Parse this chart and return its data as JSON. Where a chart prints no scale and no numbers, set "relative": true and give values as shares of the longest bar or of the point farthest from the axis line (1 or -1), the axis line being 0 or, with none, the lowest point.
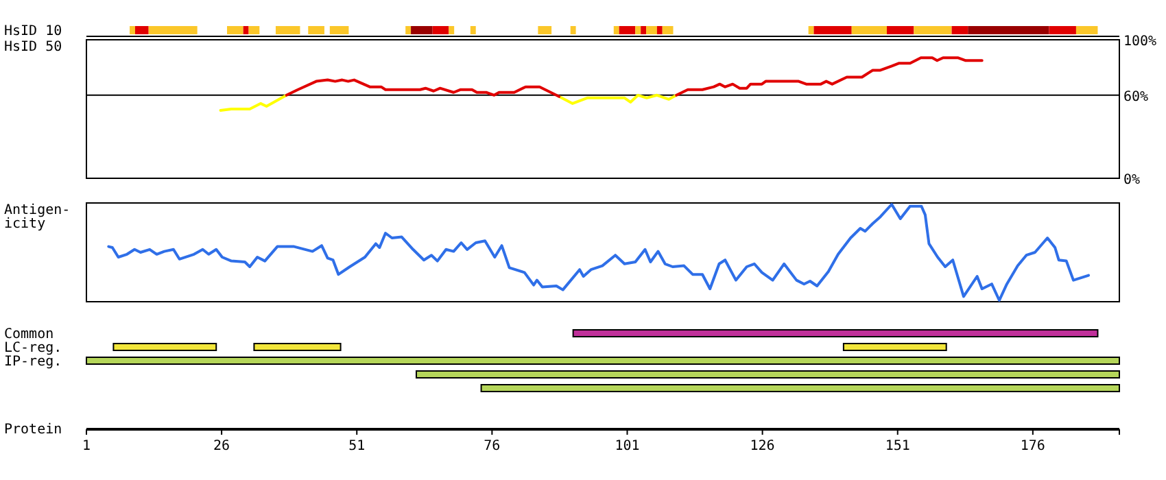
{
  "chart_data": [
    {
      "type": "bar",
      "orientation": "horizontal",
      "categories": [
        "HsID 10"
      ],
      "xlim": [
        1,
        192
      ],
      "tick_labels": "y",
      "series": [
        {
          "color": "#fbc72a",
          "base": [
            9
          ],
          "values": [
            1
          ]
        },
        {
          "color": "#e00000",
          "base": [
            10
          ],
          "values": [
            2.5
          ]
        },
        {
          "color": "#fbc72a",
          "base": [
            12.5
          ],
          "values": [
            9
          ]
        },
        {
          "color": "#fbc72a",
          "base": [
            27
          ],
          "values": [
            3
          ]
        },
        {
          "color": "#e00000",
          "base": [
            30
          ],
          "values": [
            1
          ]
        },
        {
          "color": "#fbc72a",
          "base": [
            31
          ],
          "values": [
            2
          ]
        },
        {
          "color": "#fbc72a",
          "base": [
            36
          ],
          "values": [
            4.5
          ]
        },
        {
          "color": "#fbc72a",
          "base": [
            42
          ],
          "values": [
            3
          ]
        },
        {
          "color": "#fbc72a",
          "base": [
            46
          ],
          "values": [
            3.5
          ]
        },
        {
          "color": "#fbc72a",
          "base": [
            60
          ],
          "values": [
            1
          ]
        },
        {
          "color": "#990000",
          "base": [
            61
          ],
          "values": [
            4
          ]
        },
        {
          "color": "#e00000",
          "base": [
            65
          ],
          "values": [
            3
          ]
        },
        {
          "color": "#fbc72a",
          "base": [
            68
          ],
          "values": [
            1
          ]
        },
        {
          "color": "#fbc72a",
          "base": [
            72
          ],
          "values": [
            1
          ]
        },
        {
          "color": "#fbc72a",
          "base": [
            84.5
          ],
          "values": [
            2.5
          ]
        },
        {
          "color": "#fbc72a",
          "base": [
            90.5
          ],
          "values": [
            1
          ]
        },
        {
          "color": "#fbc72a",
          "base": [
            98.5
          ],
          "values": [
            1
          ]
        },
        {
          "color": "#e00000",
          "base": [
            99.5
          ],
          "values": [
            3
          ]
        },
        {
          "color": "#fbc72a",
          "base": [
            102.5
          ],
          "values": [
            1
          ]
        },
        {
          "color": "#e00000",
          "base": [
            103.5
          ],
          "values": [
            1
          ]
        },
        {
          "color": "#fbc72a",
          "base": [
            104.5
          ],
          "values": [
            2
          ]
        },
        {
          "color": "#e00000",
          "base": [
            106.5
          ],
          "values": [
            1
          ]
        },
        {
          "color": "#fbc72a",
          "base": [
            107.5
          ],
          "values": [
            2
          ]
        },
        {
          "color": "#fbc72a",
          "base": [
            134.5
          ],
          "values": [
            1
          ]
        },
        {
          "color": "#e00000",
          "base": [
            135.5
          ],
          "values": [
            7
          ]
        },
        {
          "color": "#fbc72a",
          "base": [
            142.5
          ],
          "values": [
            6.5
          ]
        },
        {
          "color": "#e00000",
          "base": [
            149
          ],
          "values": [
            5
          ]
        },
        {
          "color": "#fbc72a",
          "base": [
            154
          ],
          "values": [
            7
          ]
        },
        {
          "color": "#e00000",
          "base": [
            161
          ],
          "values": [
            3
          ]
        },
        {
          "color": "#990000",
          "base": [
            164
          ],
          "values": [
            15
          ]
        },
        {
          "color": "#e00000",
          "base": [
            179
          ],
          "values": [
            5
          ]
        },
        {
          "color": "#fbc72a",
          "base": [
            184
          ],
          "values": [
            4
          ]
        }
      ]
    },
    {
      "type": "line",
      "ylabel": "HsID 50",
      "xlim": [
        1,
        192
      ],
      "ylim": [
        0,
        100
      ],
      "yticks": [
        {
          "value": 0,
          "label": "0%"
        },
        {
          "value": 60,
          "label": "60%"
        },
        {
          "value": 100,
          "label": "100%"
        }
      ],
      "tick_labels": "y",
      "ref_lines": [
        {
          "axis": "y",
          "value": 60,
          "color": "#000000"
        }
      ],
      "series": [
        {
          "color": "#ffff00",
          "x": [
            25.8,
            27.8,
            31.2,
            33.2,
            34.3,
            38,
            null,
            88.4,
            90.9,
            93.6,
            100.5,
            101.6,
            103,
            104.6,
            106.5,
            108.7,
            110.1
          ],
          "values": [
            49,
            50,
            50,
            54,
            52,
            60,
            null,
            59,
            54,
            58,
            58,
            55,
            60,
            58,
            60,
            57,
            60
          ]
        },
        {
          "color": "#e00000",
          "x": [
            38,
            40.1,
            43.5,
            45.6,
            47,
            48.3,
            49.4,
            50.5,
            53.4,
            55.5,
            56.3,
            62.7,
            63.7,
            65.2,
            66.4,
            68.9,
            70.2,
            72.3,
            73.2,
            75,
            76.4,
            77.3,
            80.1,
            82.2,
            84.8,
            88.4,
            null,
            110.1,
            112.2,
            114.9,
            117,
            118.1,
            119.1,
            120.5,
            121.8,
            123.1,
            123.8,
            125.9,
            126.6,
            132.7,
            134.1,
            136.8,
            137.8,
            138.9,
            141.6,
            144.4,
            146.4,
            147.8,
            149.9,
            151.2,
            153.3,
            155.3,
            157.4,
            158.3,
            159.4,
            162.2,
            163.6,
            166.6
          ],
          "values": [
            60,
            64,
            70,
            71,
            70,
            71,
            70,
            71,
            66,
            66,
            64,
            64,
            65,
            63,
            65,
            62,
            64,
            64,
            62,
            62,
            60,
            62,
            62,
            66,
            66,
            59,
            null,
            60,
            64,
            64,
            66,
            68,
            66,
            68,
            65,
            65,
            68,
            68,
            70,
            70,
            68,
            68,
            70,
            68,
            73,
            73,
            78,
            78,
            81,
            83,
            83,
            87,
            87,
            85,
            87,
            87,
            85,
            85
          ]
        }
      ]
    },
    {
      "type": "line",
      "ylabel": "Antigen-\nicity",
      "relative": true,
      "xlim": [
        1,
        192
      ],
      "tick_labels": false,
      "series": [
        {
          "color": "#2f6fe8",
          "x": [
            5.1,
            5.8,
            6.9,
            8.5,
            9.9,
            11,
            12.7,
            14,
            15.4,
            17.1,
            18.2,
            20.9,
            22.5,
            23.6,
            25,
            26.1,
            27.8,
            30.3,
            31.2,
            32.6,
            34,
            36.3,
            39.4,
            42.8,
            44.5,
            45.6,
            46.6,
            47.6,
            49.7,
            52.5,
            54.5,
            55.2,
            56.3,
            57.5,
            59.3,
            61.4,
            63.4,
            64.8,
            65.9,
            67.5,
            68.9,
            70.3,
            71.4,
            73,
            74.7,
            76.5,
            77.8,
            79.2,
            82,
            83.7,
            84.3,
            85.3,
            87.9,
            89.1,
            92.2,
            92.9,
            94.3,
            96.4,
            98.8,
            100.5,
            102.5,
            104.3,
            105.3,
            106.7,
            108,
            109.4,
            111.5,
            113.1,
            114.9,
            116.3,
            118,
            119.1,
            121.1,
            123.1,
            124.5,
            125.9,
            127.9,
            130,
            132.3,
            133.7,
            134.8,
            136.1,
            138.2,
            140,
            142.3,
            144.1,
            145,
            146.4,
            147.8,
            149.9,
            151.5,
            153.3,
            155.4,
            156.1,
            156.8,
            158.4,
            159.8,
            161.2,
            163.2,
            165.7,
            166.6,
            168.4,
            169.8,
            171.2,
            173.2,
            174.8,
            176.4,
            178.7,
            180.1,
            180.8,
            182.2,
            183.5,
            186.3
          ],
          "values": [
            0.56,
            0.55,
            0.45,
            0.48,
            0.53,
            0.5,
            0.53,
            0.48,
            0.51,
            0.53,
            0.43,
            0.48,
            0.53,
            0.48,
            0.53,
            0.45,
            0.41,
            0.4,
            0.35,
            0.45,
            0.41,
            0.56,
            0.56,
            0.51,
            0.57,
            0.44,
            0.42,
            0.27,
            0.35,
            0.45,
            0.59,
            0.55,
            0.7,
            0.65,
            0.66,
            0.53,
            0.42,
            0.47,
            0.41,
            0.53,
            0.51,
            0.6,
            0.53,
            0.6,
            0.62,
            0.45,
            0.57,
            0.34,
            0.29,
            0.16,
            0.21,
            0.14,
            0.15,
            0.11,
            0.32,
            0.25,
            0.32,
            0.36,
            0.47,
            0.38,
            0.4,
            0.53,
            0.4,
            0.51,
            0.38,
            0.35,
            0.36,
            0.27,
            0.27,
            0.12,
            0.38,
            0.42,
            0.21,
            0.35,
            0.38,
            0.29,
            0.21,
            0.38,
            0.21,
            0.17,
            0.2,
            0.15,
            0.3,
            0.48,
            0.65,
            0.75,
            0.72,
            0.8,
            0.87,
            1,
            0.85,
            0.98,
            0.98,
            0.89,
            0.59,
            0.45,
            0.35,
            0.42,
            0.04,
            0.25,
            0.12,
            0.17,
            0,
            0.17,
            0.36,
            0.47,
            0.5,
            0.65,
            0.55,
            0.42,
            0.41,
            0.21,
            0.26
          ]
        }
      ]
    },
    {
      "type": "bar",
      "orientation": "horizontal",
      "xlabel": "Protein",
      "categories": [
        "Common",
        "LC-reg.",
        "IP-reg.",
        null,
        null
      ],
      "xlim": [
        1,
        192
      ],
      "xticks": [
        1,
        26,
        51,
        76,
        101,
        126,
        151,
        176
      ],
      "series": [
        {
          "color": "#c0309a",
          "base": [
            91,
            null,
            null,
            null,
            null
          ],
          "values": [
            97,
            null,
            null,
            null,
            null
          ]
        },
        {
          "color": "#f2e63a",
          "base": [
            null,
            6,
            null,
            null,
            null
          ],
          "values": [
            null,
            19,
            null,
            null,
            null
          ]
        },
        {
          "color": "#f2e63a",
          "base": [
            null,
            32,
            null,
            null,
            null
          ],
          "values": [
            null,
            16,
            null,
            null,
            null
          ]
        },
        {
          "color": "#f2e63a",
          "base": [
            null,
            141,
            null,
            null,
            null
          ],
          "values": [
            null,
            19,
            null,
            null,
            null
          ]
        },
        {
          "color": "#b5d65a",
          "base": [
            null,
            null,
            1,
            62,
            74
          ],
          "values": [
            null,
            null,
            191,
            130,
            118
          ]
        }
      ]
    }
  ]
}
